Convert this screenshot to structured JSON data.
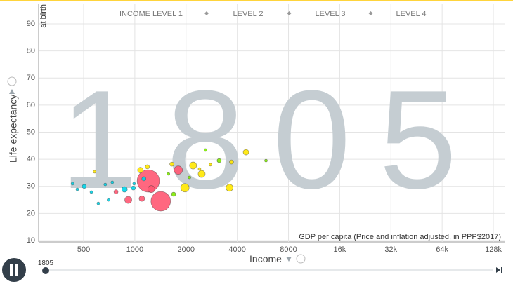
{
  "chart_data": {
    "type": "bubble",
    "year": "1805",
    "income_levels": [
      "INCOME LEVEL 1",
      "LEVEL 2",
      "LEVEL 3",
      "LEVEL 4"
    ],
    "y_label": "Life expectancy",
    "y_sublabel": "at birth",
    "x_label": "Income",
    "x_sublabel": "GDP per capita (Price and inflation adjusted, in PPP$2017)",
    "xscale": "log",
    "xlim": [
      272,
      149000
    ],
    "xticks": [
      500,
      1000,
      2000,
      4000,
      8000,
      {
        "value": 16000,
        "label": "16k"
      },
      {
        "value": 32000,
        "label": "32k"
      },
      {
        "value": 64000,
        "label": "64k"
      },
      {
        "value": 128000,
        "label": "128k"
      }
    ],
    "ylim": [
      9.5,
      97.5
    ],
    "yticks": [
      10,
      20,
      30,
      40,
      50,
      60,
      70,
      80,
      90
    ],
    "grid": true,
    "series": [
      {
        "color": "#ff5872",
        "x": [
          1200,
          1420,
          1800,
          915,
          1100,
          1250,
          775
        ],
        "y": [
          32,
          24.5,
          36,
          25,
          25.5,
          29,
          28
        ],
        "size": [
          350,
          270,
          50,
          35,
          22,
          35,
          12
        ]
      },
      {
        "color": "#ffe700",
        "x": [
          1970,
          2200,
          2470,
          3600,
          4500,
          3700,
          1078,
          1650,
          2780,
          1185,
          580,
          2400
        ],
        "y": [
          29.5,
          37.7,
          34.6,
          29.5,
          42.6,
          39,
          36,
          38.2,
          38,
          37.2,
          35.4,
          36.4
        ],
        "size": [
          50,
          35,
          35,
          35,
          22,
          12,
          22,
          12,
          5.5,
          12,
          5.5,
          5.5
        ]
      },
      {
        "color": "#7feb00",
        "x": [
          3130,
          1690,
          2095,
          2600,
          1576,
          5900
        ],
        "y": [
          39.5,
          27.1,
          33.3,
          43.4,
          34.6,
          39.5
        ],
        "size": [
          12,
          12,
          5.5,
          5.5,
          5.5,
          5.5
        ]
      },
      {
        "color": "#00d5e9",
        "x": [
          870,
          430,
          504,
          670,
          737,
          980,
          700,
          610,
          555,
          1130,
          990,
          459
        ],
        "y": [
          28.9,
          31,
          30,
          30.7,
          31.5,
          29.4,
          25,
          23.7,
          27.9,
          32.8,
          31,
          28.9
        ],
        "size": [
          22,
          5.5,
          12,
          5.5,
          5.5,
          12,
          5.5,
          5.5,
          5.5,
          12,
          5.5,
          5.5
        ]
      }
    ]
  }
}
